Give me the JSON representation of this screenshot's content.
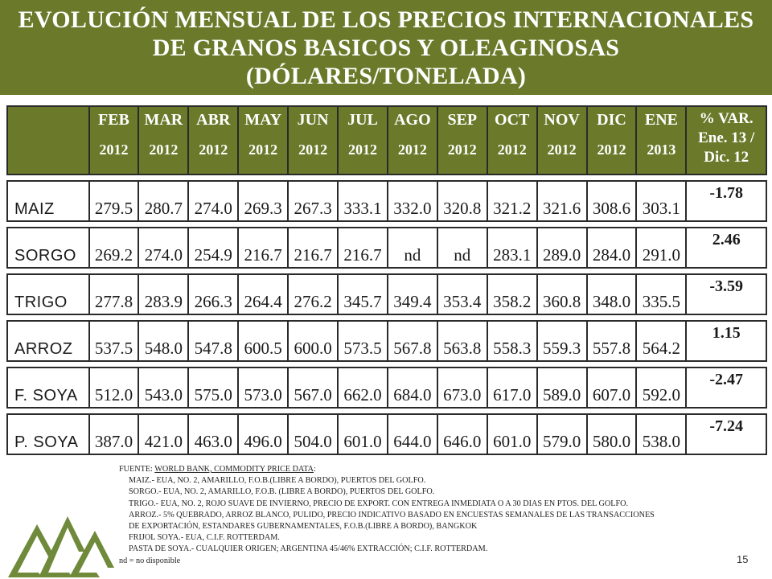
{
  "title": {
    "line1": "EVOLUCIÓN MENSUAL DE LOS PRECIOS INTERNACIONALES",
    "line2": "DE GRANOS BASICOS Y OLEAGINOSAS",
    "line3": "(DÓLARES/TONELADA)"
  },
  "colors": {
    "header_green": "#6a7a2a"
  },
  "table": {
    "columns": [
      {
        "month": "FEB",
        "year": "2012"
      },
      {
        "month": "MAR",
        "year": "2012"
      },
      {
        "month": "ABR",
        "year": "2012"
      },
      {
        "month": "MAY",
        "year": "2012"
      },
      {
        "month": "JUN",
        "year": "2012"
      },
      {
        "month": "JUL",
        "year": "2012"
      },
      {
        "month": "AGO",
        "year": "2012"
      },
      {
        "month": "SEP",
        "year": "2012"
      },
      {
        "month": "OCT",
        "year": "2012"
      },
      {
        "month": "NOV",
        "year": "2012"
      },
      {
        "month": "DIC",
        "year": "2012"
      },
      {
        "month": "ENE",
        "year": "2013"
      }
    ],
    "var_header": [
      "% VAR.",
      "Ene. 13 /",
      "Dic. 12"
    ],
    "rows": [
      {
        "name": "MAIZ",
        "values": [
          "279.5",
          "280.7",
          "274.0",
          "269.3",
          "267.3",
          "333.1",
          "332.0",
          "320.8",
          "321.2",
          "321.6",
          "308.6",
          "303.1"
        ],
        "var": "-1.78"
      },
      {
        "name": "SORGO",
        "values": [
          "269.2",
          "274.0",
          "254.9",
          "216.7",
          "216.7",
          "216.7",
          "nd",
          "nd",
          "283.1",
          "289.0",
          "284.0",
          "291.0"
        ],
        "var": "2.46"
      },
      {
        "name": "TRIGO",
        "values": [
          "277.8",
          "283.9",
          "266.3",
          "264.4",
          "276.2",
          "345.7",
          "349.4",
          "353.4",
          "358.2",
          "360.8",
          "348.0",
          "335.5"
        ],
        "var": "-3.59"
      },
      {
        "name": "ARROZ",
        "values": [
          "537.5",
          "548.0",
          "547.8",
          "600.5",
          "600.0",
          "573.5",
          "567.8",
          "563.8",
          "558.3",
          "559.3",
          "557.8",
          "564.2"
        ],
        "var": "1.15"
      },
      {
        "name": "F. SOYA",
        "values": [
          "512.0",
          "543.0",
          "575.0",
          "573.0",
          "567.0",
          "662.0",
          "684.0",
          "673.0",
          "617.0",
          "589.0",
          "607.0",
          "592.0"
        ],
        "var": "-2.47"
      },
      {
        "name": "P. SOYA",
        "values": [
          "387.0",
          "421.0",
          "463.0",
          "496.0",
          "504.0",
          "601.0",
          "644.0",
          "646.0",
          "601.0",
          "579.0",
          "580.0",
          "538.0"
        ],
        "var": "-7.24"
      }
    ]
  },
  "notes": {
    "source_prefix": "FUENTE: ",
    "source_label": "WORLD BANK, COMMODITY PRICE DATA",
    "source_suffix": ":",
    "lines": [
      "MAIZ.-    EUA, NO. 2, AMARILLO, F.O.B.(LIBRE A BORDO), PUERTOS DEL GOLFO.",
      "SORGO.- EUA, NO. 2, AMARILLO, F.O.B. (LIBRE A BORDO), PUERTOS DEL GOLFO.",
      "TRIGO.-  EUA, NO. 2, ROJO SUAVE DE INVIERNO,  PRECIO DE EXPORT. CON ENTREGA INMEDIATA  O A 30 DIAS EN PTOS. DEL GOLFO.",
      "ARROZ.- 5% QUEBRADO, ARROZ BLANCO,  PULIDO, PRECIO INDICATIVO BASADO  EN  ENCUESTAS SEMANALES DE LAS TRANSACCIONES",
      "DE EXPORTACIÓN, ESTANDARES GUBERNAMENTALES, F.O.B.(LIBRE A BORDO),  BANGKOK",
      "FRIJOL SOYA.-  EUA, C.I.F. ROTTERDAM.",
      "PASTA DE SOYA.- CUALQUIER ORIGEN; ARGENTINA 45/46% EXTRACCIÓN; C.I.F. ROTTERDAM."
    ],
    "nd_note": "nd  = no disponible"
  },
  "page_number": "15"
}
